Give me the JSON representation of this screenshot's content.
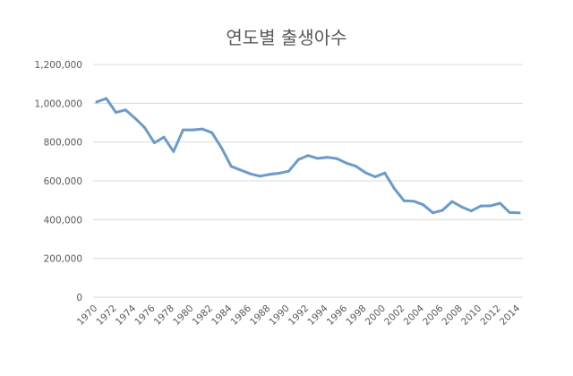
{
  "chart_data": {
    "type": "line",
    "title": "연도별 출생아수",
    "xlabel": "",
    "ylabel": "",
    "ylim": [
      0,
      1200000
    ],
    "grid": true,
    "legend": "none",
    "y_ticks": [
      0,
      200000,
      400000,
      600000,
      800000,
      1000000,
      1200000
    ],
    "y_tick_labels": [
      "0",
      "200,000",
      "400,000",
      "600,000",
      "800,000",
      "1,000,000",
      "1,200,000"
    ],
    "x_tick_labels": [
      "1970",
      "1972",
      "1974",
      "1976",
      "1978",
      "1980",
      "1982",
      "1984",
      "1986",
      "1988",
      "1990",
      "1992",
      "1994",
      "1996",
      "1998",
      "2000",
      "2002",
      "2004",
      "2006",
      "2008",
      "2010",
      "2012",
      "2014"
    ],
    "line_color": "#6b9bc8",
    "x": [
      1970,
      1971,
      1972,
      1973,
      1974,
      1975,
      1976,
      1977,
      1978,
      1979,
      1980,
      1981,
      1982,
      1983,
      1984,
      1985,
      1986,
      1987,
      1988,
      1989,
      1990,
      1991,
      1992,
      1993,
      1994,
      1995,
      1996,
      1997,
      1998,
      1999,
      2000,
      2001,
      2002,
      2003,
      2004,
      2005,
      2006,
      2007,
      2008,
      2009,
      2010,
      2011,
      2012,
      2013,
      2014
    ],
    "series": [
      {
        "values": [
          1006645,
          1024773,
          952780,
          965521,
          922823,
          874030,
          796331,
          825339,
          750728,
          862669,
          862835,
          867409,
          848312,
          769155,
          674793,
          655489,
          636019,
          623831,
          633092,
          639431,
          649738,
          709275,
          730678,
          715826,
          721185,
          715020,
          691226,
          675394,
          641594,
          620668,
          640089,
          559934,
          496911,
          495036,
          476958,
          435031,
          448153,
          493189,
          465892,
          444849,
          470171,
          471265,
          484550,
          436455,
          435435
        ]
      }
    ]
  }
}
